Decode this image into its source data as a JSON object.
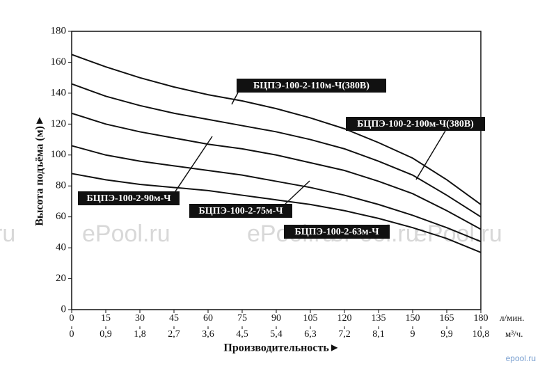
{
  "chart_data": {
    "type": "line",
    "y_label": "Высота подъёма (м)►",
    "x_label": "Производительность►",
    "x_unit": "л/мин.",
    "x2_unit": "м³/ч.",
    "x": [
      0,
      15,
      30,
      45,
      60,
      75,
      90,
      105,
      120,
      135,
      150,
      165,
      180
    ],
    "xlim": [
      0,
      180
    ],
    "xticks": [
      0,
      15,
      30,
      45,
      60,
      75,
      90,
      105,
      120,
      135,
      150,
      165,
      180
    ],
    "x2lim": [
      0,
      10.8
    ],
    "x2ticks": [
      0,
      {
        "value": 0.9,
        "label": "0,9"
      },
      {
        "value": 1.8,
        "label": "1,8"
      },
      {
        "value": 2.7,
        "label": "2,7"
      },
      {
        "value": 3.6,
        "label": "3,6"
      },
      {
        "value": 4.5,
        "label": "4,5"
      },
      {
        "value": 5.4,
        "label": "5,4"
      },
      {
        "value": 6.3,
        "label": "6,3"
      },
      {
        "value": 7.2,
        "label": "7,2"
      },
      {
        "value": 8.1,
        "label": "8,1"
      },
      9,
      {
        "value": 9.9,
        "label": "9,9"
      },
      {
        "value": 10.8,
        "label": "10,8"
      }
    ],
    "ylim": [
      0,
      180
    ],
    "yticks": [
      0,
      20,
      40,
      60,
      80,
      100,
      120,
      140,
      160,
      180
    ],
    "grid": false,
    "series": [
      {
        "name": "БЦПЭ-100-2-110м-Ч(380В)",
        "color": "#111111",
        "values": [
          165,
          157,
          150,
          144,
          139,
          135,
          130,
          124,
          117,
          108,
          98,
          84,
          68
        ]
      },
      {
        "name": "БЦПЭ-100-2-100м-Ч(380В)",
        "color": "#111111",
        "values": [
          146,
          138,
          132,
          127,
          123,
          119,
          115,
          110,
          104,
          96,
          87,
          74,
          60
        ]
      },
      {
        "name": "БЦПЭ-100-2-90м-Ч",
        "color": "#111111",
        "values": [
          127,
          120,
          115,
          111,
          107,
          104,
          100,
          95,
          90,
          83,
          75,
          64,
          52
        ]
      },
      {
        "name": "БЦПЭ-100-2-75м-Ч",
        "color": "#111111",
        "values": [
          106,
          100,
          96,
          93,
          90,
          87,
          83,
          79,
          74,
          68,
          61,
          53,
          44
        ]
      },
      {
        "name": "БЦПЭ-100-2-63м-Ч",
        "color": "#111111",
        "values": [
          88,
          84,
          81,
          79,
          77,
          74,
          71,
          68,
          64,
          59,
          53,
          46,
          37
        ]
      }
    ],
    "watermarks": [
      "ru",
      "ePool.ru",
      "ePool.ru",
      "ePool.ru",
      "ePool.ru",
      "epool.ru"
    ]
  }
}
